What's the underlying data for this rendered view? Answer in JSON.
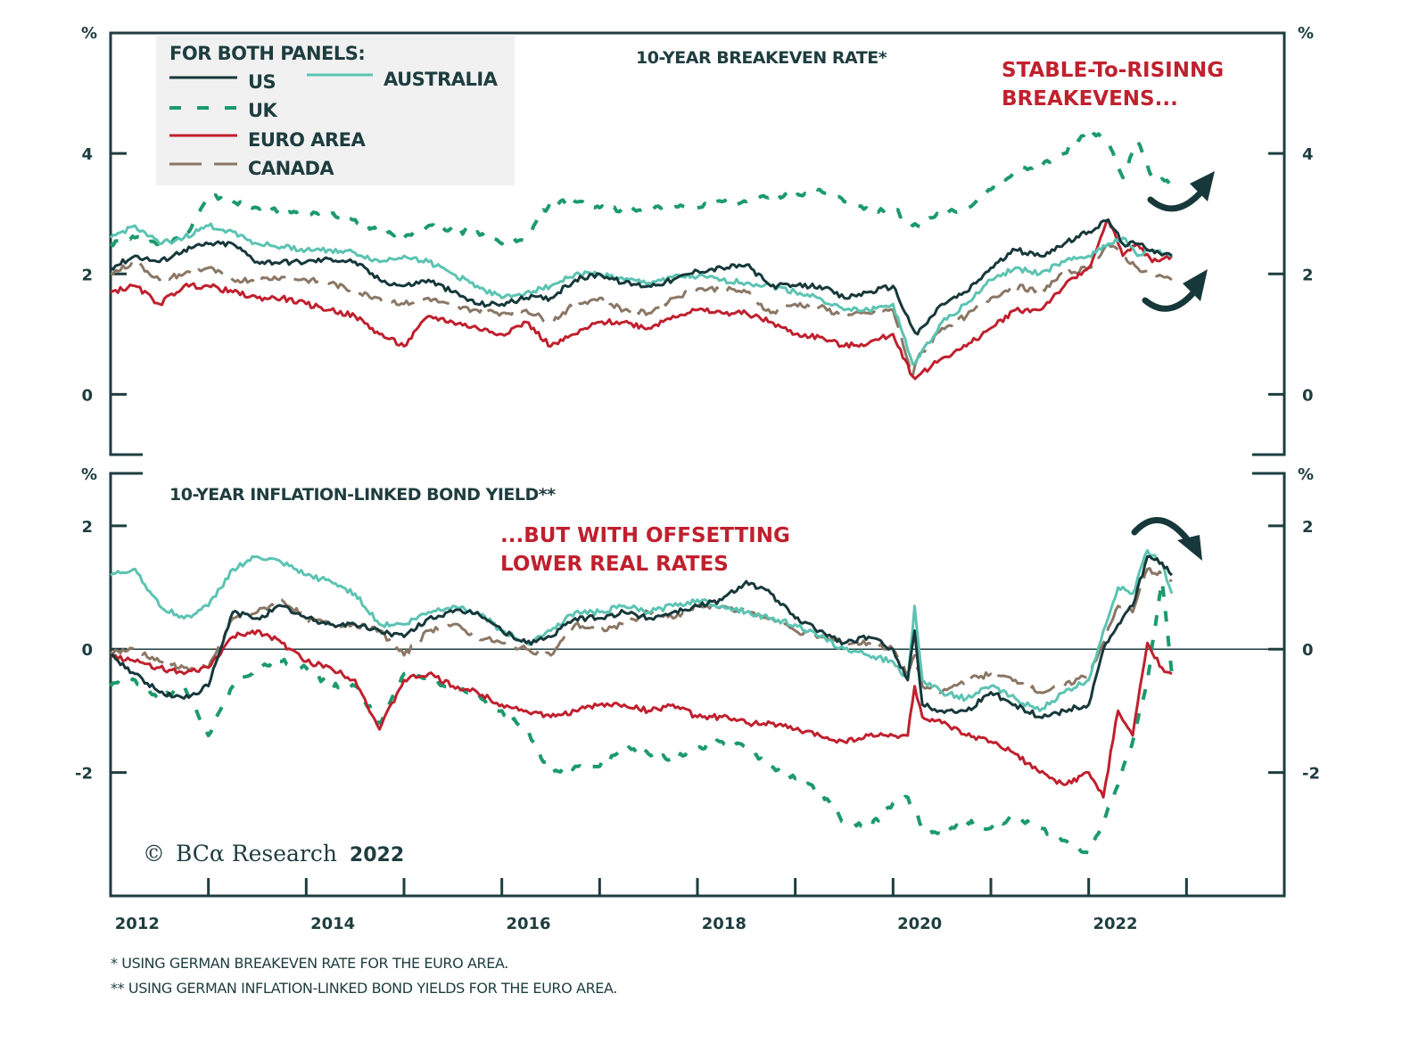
{
  "chart_data": [
    {
      "type": "line",
      "panel": "top",
      "title": "10-YEAR BREAKEVEN RATE*",
      "ylabel": "%",
      "ylim": [
        -1,
        6
      ],
      "yticks": [
        0,
        2,
        4
      ],
      "ytick_labels": [
        "0",
        "2",
        "4"
      ],
      "xlim": [
        2012.0,
        2024.0
      ],
      "annotation": [
        "STABLE-To-RISINNG",
        "BREAKEVENS..."
      ],
      "arrows": [
        "up-curve-uk",
        "up-curve-others"
      ],
      "x": [
        2012.0,
        2012.25,
        2012.5,
        2012.75,
        2013.0,
        2013.25,
        2013.5,
        2013.75,
        2014.0,
        2014.25,
        2014.5,
        2014.75,
        2015.0,
        2015.25,
        2015.5,
        2015.75,
        2016.0,
        2016.25,
        2016.5,
        2016.75,
        2017.0,
        2017.25,
        2017.5,
        2017.75,
        2018.0,
        2018.25,
        2018.5,
        2018.75,
        2019.0,
        2019.25,
        2019.5,
        2019.75,
        2020.0,
        2020.2,
        2020.25,
        2020.5,
        2020.75,
        2021.0,
        2021.25,
        2021.5,
        2021.75,
        2022.0,
        2022.2,
        2022.35,
        2022.5,
        2022.65,
        2022.85
      ],
      "series": [
        {
          "name": "US",
          "color": "#17383a",
          "dash": "solid",
          "values": [
            2.1,
            2.3,
            2.2,
            2.4,
            2.5,
            2.5,
            2.2,
            2.2,
            2.2,
            2.25,
            2.2,
            1.9,
            1.8,
            1.9,
            1.7,
            1.5,
            1.5,
            1.6,
            1.6,
            1.9,
            2.0,
            1.85,
            1.8,
            1.9,
            2.05,
            2.1,
            2.15,
            1.8,
            1.8,
            1.8,
            1.6,
            1.7,
            1.8,
            1.1,
            1.0,
            1.5,
            1.7,
            2.1,
            2.4,
            2.3,
            2.5,
            2.7,
            2.9,
            2.5,
            2.5,
            2.4,
            2.3
          ]
        },
        {
          "name": "UK",
          "color": "#1c9a6c",
          "dash": "dashed",
          "values": [
            2.5,
            2.6,
            2.5,
            2.6,
            3.3,
            3.2,
            3.1,
            3.05,
            3.0,
            3.0,
            2.9,
            2.7,
            2.6,
            2.8,
            2.7,
            2.7,
            2.5,
            2.6,
            3.2,
            3.2,
            3.1,
            3.05,
            3.1,
            3.1,
            3.1,
            3.2,
            3.2,
            3.3,
            3.3,
            3.4,
            3.2,
            3.05,
            3.1,
            2.8,
            2.8,
            3.0,
            3.1,
            3.4,
            3.7,
            3.8,
            4.0,
            4.4,
            4.2,
            3.6,
            4.2,
            3.6,
            3.5
          ]
        },
        {
          "name": "EURO AREA",
          "color": "#c0202e",
          "dash": "solid",
          "values": [
            1.7,
            1.8,
            1.5,
            1.8,
            1.8,
            1.7,
            1.6,
            1.6,
            1.5,
            1.4,
            1.3,
            1.0,
            0.8,
            1.3,
            1.2,
            1.1,
            1.0,
            1.2,
            0.8,
            1.0,
            1.2,
            1.2,
            1.1,
            1.3,
            1.4,
            1.35,
            1.35,
            1.2,
            1.0,
            0.95,
            0.8,
            0.85,
            1.0,
            0.3,
            0.3,
            0.6,
            0.8,
            1.1,
            1.4,
            1.4,
            1.8,
            2.1,
            2.9,
            2.3,
            2.5,
            2.2,
            2.3
          ]
        },
        {
          "name": "CANADA",
          "color": "#8a7765",
          "dash": "longdash",
          "values": [
            2.0,
            2.2,
            1.9,
            2.0,
            2.1,
            1.9,
            1.9,
            1.95,
            1.9,
            1.85,
            1.7,
            1.6,
            1.5,
            1.6,
            1.45,
            1.4,
            1.35,
            1.4,
            1.2,
            1.5,
            1.6,
            1.4,
            1.35,
            1.6,
            1.75,
            1.75,
            1.7,
            1.35,
            1.5,
            1.45,
            1.3,
            1.35,
            1.4,
            0.3,
            0.6,
            1.1,
            1.3,
            1.6,
            1.8,
            1.7,
            2.0,
            2.1,
            2.5,
            2.3,
            2.1,
            2.0,
            1.9
          ]
        },
        {
          "name": "AUSTRALIA",
          "color": "#5cc3b2",
          "dash": "solid",
          "values": [
            2.6,
            2.8,
            2.5,
            2.6,
            2.8,
            2.7,
            2.5,
            2.45,
            2.4,
            2.4,
            2.35,
            2.2,
            2.3,
            2.2,
            2.0,
            1.8,
            1.6,
            1.7,
            1.8,
            2.0,
            2.0,
            1.9,
            1.85,
            1.95,
            1.95,
            1.9,
            1.85,
            1.8,
            1.7,
            1.6,
            1.4,
            1.4,
            1.5,
            0.5,
            0.6,
            1.2,
            1.5,
            1.9,
            2.1,
            2.0,
            2.2,
            2.3,
            2.5,
            2.6,
            2.3,
            2.4,
            2.3
          ]
        }
      ]
    },
    {
      "type": "line",
      "panel": "bottom",
      "title": "10-YEAR INFLATION-LINKED BOND YIELD**",
      "ylabel": "%",
      "ylim": [
        -4,
        2.85
      ],
      "yticks": [
        -2,
        0,
        2
      ],
      "ytick_labels": [
        "-2",
        "0",
        "2"
      ],
      "xlim": [
        2012.0,
        2024.0
      ],
      "zero_line": true,
      "annotation": [
        "...BUT WITH OFFSETTING",
        "LOWER REAL RATES"
      ],
      "arrows": [
        "down-curve"
      ],
      "x": [
        2012.0,
        2012.25,
        2012.5,
        2012.75,
        2013.0,
        2013.25,
        2013.5,
        2013.75,
        2014.0,
        2014.25,
        2014.5,
        2014.75,
        2015.0,
        2015.25,
        2015.5,
        2015.75,
        2016.0,
        2016.25,
        2016.5,
        2016.75,
        2017.0,
        2017.25,
        2017.5,
        2017.75,
        2018.0,
        2018.25,
        2018.5,
        2018.75,
        2019.0,
        2019.25,
        2019.5,
        2019.75,
        2020.0,
        2020.15,
        2020.22,
        2020.3,
        2020.5,
        2020.75,
        2021.0,
        2021.25,
        2021.5,
        2021.75,
        2022.0,
        2022.15,
        2022.3,
        2022.45,
        2022.6,
        2022.75,
        2022.85
      ],
      "series": [
        {
          "name": "US",
          "color": "#17383a",
          "dash": "solid",
          "values": [
            -0.1,
            -0.4,
            -0.7,
            -0.8,
            -0.6,
            0.6,
            0.5,
            0.7,
            0.5,
            0.4,
            0.4,
            0.3,
            0.2,
            0.5,
            0.6,
            0.6,
            0.3,
            0.1,
            0.2,
            0.5,
            0.5,
            0.6,
            0.5,
            0.6,
            0.7,
            0.8,
            1.1,
            0.9,
            0.5,
            0.3,
            0.1,
            0.2,
            0.0,
            -0.5,
            0.3,
            -0.9,
            -1.0,
            -1.0,
            -0.7,
            -0.9,
            -1.1,
            -1.0,
            -0.9,
            0.0,
            0.4,
            0.7,
            1.5,
            1.4,
            1.2
          ]
        },
        {
          "name": "UK",
          "color": "#1c9a6c",
          "dash": "dashed",
          "values": [
            -0.6,
            -0.5,
            -0.8,
            -0.6,
            -1.4,
            -0.6,
            -0.3,
            -0.2,
            -0.3,
            -0.6,
            -0.6,
            -1.2,
            -0.4,
            -0.5,
            -0.6,
            -0.8,
            -1.0,
            -1.3,
            -2.0,
            -1.9,
            -1.9,
            -1.6,
            -1.7,
            -1.8,
            -1.6,
            -1.5,
            -1.6,
            -1.9,
            -2.1,
            -2.3,
            -2.8,
            -2.9,
            -2.5,
            -2.4,
            -2.6,
            -2.9,
            -3.0,
            -2.8,
            -2.9,
            -2.7,
            -2.9,
            -3.1,
            -3.3,
            -2.8,
            -2.2,
            -1.5,
            -0.5,
            1.1,
            -0.4
          ]
        },
        {
          "name": "EURO AREA",
          "color": "#c0202e",
          "dash": "solid",
          "values": [
            -0.1,
            -0.2,
            -0.3,
            -0.4,
            -0.3,
            0.2,
            0.3,
            0.1,
            -0.2,
            -0.3,
            -0.5,
            -1.3,
            -0.5,
            -0.4,
            -0.6,
            -0.7,
            -0.9,
            -1.0,
            -1.1,
            -1.0,
            -0.9,
            -0.9,
            -1.0,
            -0.9,
            -1.1,
            -1.1,
            -1.2,
            -1.2,
            -1.3,
            -1.4,
            -1.5,
            -1.4,
            -1.4,
            -1.4,
            -0.6,
            -1.1,
            -1.2,
            -1.4,
            -1.5,
            -1.7,
            -2.0,
            -2.2,
            -2.0,
            -2.4,
            -1.0,
            -1.4,
            0.1,
            -0.3,
            -0.4
          ]
        },
        {
          "name": "CANADA",
          "color": "#8a7765",
          "dash": "longdash",
          "values": [
            -0.05,
            0.0,
            -0.2,
            -0.3,
            -0.3,
            0.5,
            0.6,
            0.8,
            0.5,
            0.4,
            0.4,
            0.3,
            -0.1,
            0.3,
            0.4,
            0.2,
            0.1,
            0.0,
            -0.1,
            0.4,
            0.3,
            0.4,
            0.6,
            0.5,
            0.7,
            0.7,
            0.6,
            0.5,
            0.3,
            0.2,
            0.1,
            0.1,
            0.0,
            -0.4,
            -0.1,
            -0.6,
            -0.7,
            -0.5,
            -0.4,
            -0.5,
            -0.7,
            -0.6,
            -0.4,
            0.1,
            0.7,
            0.6,
            1.3,
            1.2,
            1.1
          ]
        },
        {
          "name": "AUSTRALIA",
          "color": "#5cc3b2",
          "dash": "solid",
          "values": [
            1.2,
            1.3,
            0.7,
            0.5,
            0.7,
            1.3,
            1.5,
            1.4,
            1.2,
            1.1,
            0.9,
            0.4,
            0.4,
            0.6,
            0.7,
            0.6,
            0.3,
            0.1,
            0.3,
            0.6,
            0.6,
            0.7,
            0.6,
            0.7,
            0.8,
            0.7,
            0.6,
            0.5,
            0.4,
            0.2,
            0.0,
            -0.1,
            -0.2,
            -0.5,
            0.7,
            -0.5,
            -0.7,
            -0.8,
            -0.6,
            -0.8,
            -1.0,
            -0.7,
            -0.5,
            0.3,
            1.0,
            0.9,
            1.6,
            1.4,
            0.9
          ]
        }
      ]
    }
  ],
  "legend": {
    "title": "FOR BOTH PANELS:",
    "items": [
      "US",
      "UK",
      "EURO AREA",
      "CANADA",
      "AUSTRALIA"
    ]
  },
  "x_axis": {
    "labels": [
      "2012",
      "2014",
      "2016",
      "2018",
      "2020",
      "2022"
    ],
    "label_years": [
      2012,
      2014,
      2016,
      2018,
      2020,
      2022
    ],
    "tick_years": [
      2013,
      2014,
      2015,
      2016,
      2017,
      2018,
      2019,
      2020,
      2021,
      2022,
      2023
    ]
  },
  "axis_unit": "%",
  "copyright": {
    "symbol": "©",
    "brand": "BCα Research",
    "year": "2022"
  },
  "footnotes": [
    "*  USING GERMAN BREAKEVEN RATE FOR THE EURO AREA.",
    "** USING GERMAN INFLATION-LINKED BOND YIELDS FOR THE EURO AREA."
  ]
}
